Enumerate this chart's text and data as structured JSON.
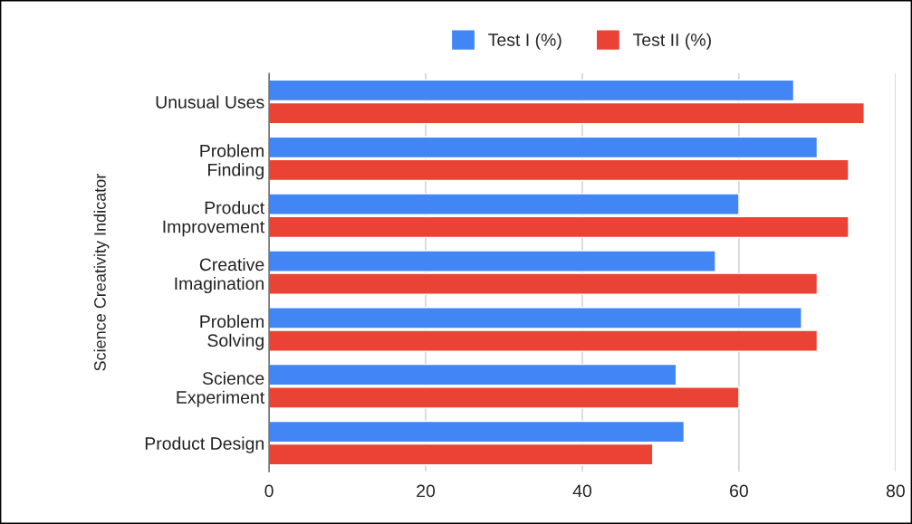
{
  "chart_data": {
    "type": "bar",
    "orientation": "horizontal",
    "categories": [
      "Unusual Uses",
      "Problem\nFinding",
      "Product\nImprovement",
      "Creative\nImagination",
      "Problem\nSolving",
      "Science\nExperiment",
      "Product Design"
    ],
    "series": [
      {
        "name": "Test I (%)",
        "color": "#4285f4",
        "values": [
          67,
          70,
          60,
          57,
          68,
          52,
          53
        ]
      },
      {
        "name": "Test II (%)",
        "color": "#ea4335",
        "values": [
          76,
          74,
          74,
          70,
          70,
          60,
          49
        ]
      }
    ],
    "ylabel": "Science Creativity Indicator",
    "xlim": [
      0,
      80
    ],
    "xticks": [
      0,
      20,
      40,
      60,
      80
    ],
    "grid": "x",
    "legend": "top"
  }
}
